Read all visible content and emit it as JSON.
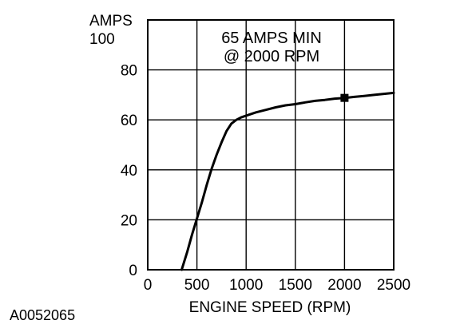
{
  "chart_data": {
    "type": "line",
    "xlabel": "ENGINE SPEED (RPM)",
    "ylabel_line1": "AMPS",
    "xlim": [
      0,
      2500
    ],
    "ylim": [
      0,
      100
    ],
    "xticks": [
      0,
      500,
      1000,
      1500,
      2000,
      2500
    ],
    "yticks": [
      0,
      20,
      40,
      60,
      80,
      100
    ],
    "grid": true,
    "series": [
      {
        "x": [
          345,
          400,
          450,
          500,
          550,
          600,
          650,
          700,
          750,
          800,
          850,
          900,
          950,
          1000,
          1100,
          1200,
          1300,
          1400,
          1500,
          1600,
          1700,
          1800,
          1900,
          2000,
          2100,
          2200,
          2300,
          2400,
          2500
        ],
        "y": [
          0,
          7,
          14,
          20.5,
          27,
          34,
          40.5,
          46,
          51,
          55.5,
          58.5,
          60,
          61,
          61.7,
          63,
          64,
          65,
          65.8,
          66.3,
          67,
          67.6,
          68,
          68.5,
          68.8,
          69.2,
          69.6,
          70,
          70.4,
          70.8
        ]
      }
    ],
    "marker": {
      "x": 2000,
      "y": 68.8
    },
    "annotation": [
      "65 AMPS MIN",
      "@ 2000 RPM"
    ]
  },
  "figure_ref": "A0052065"
}
